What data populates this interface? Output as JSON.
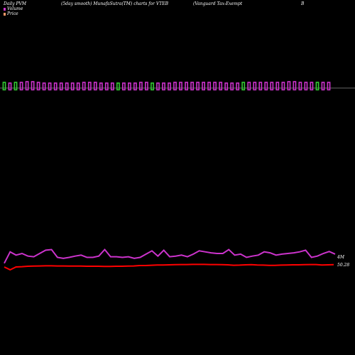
{
  "header": {
    "left": "Daily PVM",
    "mid": "(5day smooth) MunafaSutra(TM) charts for VTEB",
    "right": "(Vanguard Tax-Exempt",
    "far_right": "B"
  },
  "legend": {
    "volume_label": "Volume",
    "price_label": "Price"
  },
  "colors": {
    "background": "#000000",
    "volume_up": "#cc33cc",
    "volume_down": "#33cc33",
    "volume_line": "#cc33cc",
    "price_line": "#ff0000",
    "baseline": "#cccccc",
    "legend_volume": "#cc33cc",
    "legend_price": "#ff9966"
  },
  "chart_data": {
    "type": "bar+line",
    "bars": {
      "count": 58,
      "down_indices": [
        0,
        2,
        20,
        26,
        42,
        55
      ],
      "note_values": [
        8,
        7,
        8,
        8,
        9,
        9,
        8,
        7,
        7,
        7,
        7,
        7,
        7,
        7,
        8,
        8,
        8,
        7,
        7,
        7,
        7,
        7,
        7,
        7,
        8,
        8,
        7,
        7,
        7,
        7,
        8,
        8,
        8,
        8,
        8,
        8,
        8,
        8,
        8,
        7,
        7,
        7,
        8,
        8,
        8,
        8,
        8,
        8,
        8,
        8,
        9,
        9,
        8,
        8,
        8,
        8,
        8,
        8
      ]
    },
    "volume_line": {
      "values": [
        0.2,
        0.55,
        0.45,
        0.5,
        0.42,
        0.4,
        0.5,
        0.6,
        0.62,
        0.38,
        0.35,
        0.38,
        0.42,
        0.45,
        0.38,
        0.38,
        0.42,
        0.62,
        0.4,
        0.4,
        0.38,
        0.4,
        0.35,
        0.38,
        0.48,
        0.58,
        0.42,
        0.6,
        0.4,
        0.42,
        0.45,
        0.4,
        0.48,
        0.58,
        0.55,
        0.52,
        0.5,
        0.5,
        0.62,
        0.45,
        0.48,
        0.38,
        0.42,
        0.45,
        0.55,
        0.52,
        0.45,
        0.48,
        0.5,
        0.52,
        0.55,
        0.6,
        0.38,
        0.42,
        0.5,
        0.56,
        0.48
      ],
      "label": "4M"
    },
    "price_line": {
      "values": [
        50.1,
        49.9,
        50.1,
        50.12,
        50.15,
        50.16,
        50.17,
        50.18,
        50.18,
        50.17,
        50.17,
        50.16,
        50.16,
        50.16,
        50.15,
        50.15,
        50.15,
        50.14,
        50.14,
        50.15,
        50.15,
        50.16,
        50.17,
        50.2,
        50.2,
        50.22,
        50.24,
        50.24,
        50.25,
        50.26,
        50.27,
        50.27,
        50.28,
        50.28,
        50.28,
        50.27,
        50.27,
        50.26,
        50.25,
        50.22,
        50.23,
        50.25,
        50.26,
        50.24,
        50.23,
        50.21,
        50.21,
        50.23,
        50.24,
        50.25,
        50.25,
        50.26,
        50.27,
        50.27,
        50.24,
        50.25,
        50.26
      ],
      "label": "50.28"
    }
  }
}
